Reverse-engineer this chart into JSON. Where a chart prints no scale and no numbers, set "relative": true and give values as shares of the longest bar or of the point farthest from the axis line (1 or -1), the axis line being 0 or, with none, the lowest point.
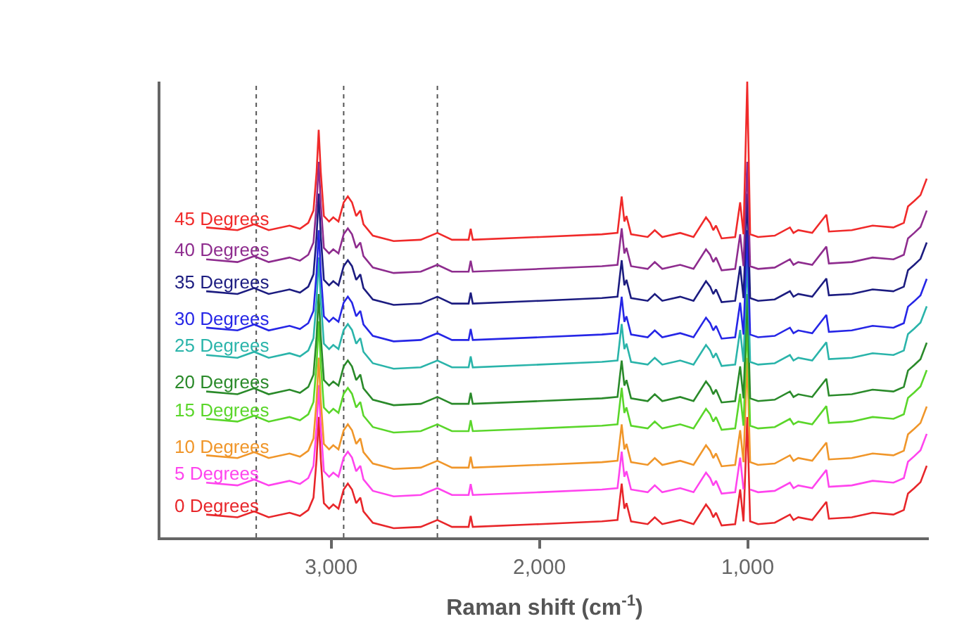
{
  "chart_data": {
    "type": "line",
    "relative": true,
    "xlabel": "Raman shift (cm$^{-1}$)",
    "x": [
      3600,
      3450,
      3370,
      3300,
      3200,
      3150,
      3110,
      3085,
      3070,
      3060,
      3050,
      3035,
      3010,
      2990,
      2965,
      2940,
      2920,
      2900,
      2880,
      2860,
      2845,
      2800,
      2700,
      2570,
      2490,
      2420,
      2340,
      2330,
      2320,
      2000,
      1700,
      1625,
      1605,
      1592,
      1582,
      1560,
      1480,
      1446,
      1410,
      1324,
      1260,
      1200,
      1180,
      1165,
      1152,
      1125,
      1060,
      1036,
      1020,
      1002,
      988,
      950,
      870,
      797,
      780,
      757,
      690,
      622,
      610,
      500,
      400,
      300,
      250,
      230,
      200,
      170,
      140
    ],
    "xlim": [
      3820,
      130
    ],
    "xticks": [
      {
        "value": 3000,
        "label": "3,000"
      },
      {
        "value": 2000,
        "label": "2,000"
      },
      {
        "value": 1000,
        "label": "1,000"
      }
    ],
    "grid": false,
    "legend": false,
    "ref_lines": [
      {
        "axis": "x",
        "value": 3360,
        "color": "#555555",
        "line_style": "dotted"
      },
      {
        "axis": "x",
        "value": 2940,
        "color": "#555555",
        "line_style": "dotted"
      },
      {
        "axis": "x",
        "value": 2490,
        "color": "#555555",
        "line_style": "dotted"
      }
    ],
    "series": [
      {
        "name": "0 Degrees",
        "color": "#e8262a",
        "values": [
          0.05,
          0.044,
          0.057,
          0.044,
          0.054,
          0.047,
          0.06,
          0.087,
          0.172,
          0.264,
          0.172,
          0.075,
          0.063,
          0.072,
          0.063,
          0.105,
          0.118,
          0.105,
          0.075,
          0.087,
          0.057,
          0.032,
          0.02,
          0.023,
          0.038,
          0.023,
          0.023,
          0.047,
          0.023,
          0.029,
          0.035,
          0.038,
          0.118,
          0.063,
          0.075,
          0.035,
          0.029,
          0.044,
          0.029,
          0.038,
          0.029,
          0.072,
          0.06,
          0.044,
          0.054,
          0.026,
          0.029,
          0.105,
          0.035,
          0.264,
          0.035,
          0.029,
          0.032,
          0.05,
          0.038,
          0.044,
          0.038,
          0.078,
          0.041,
          0.044,
          0.054,
          0.05,
          0.06,
          0.096,
          0.108,
          0.121,
          0.157
        ]
      },
      {
        "name": "5 Degrees",
        "color": "#ff44ee",
        "values": [
          0.12,
          0.114,
          0.127,
          0.114,
          0.124,
          0.117,
          0.13,
          0.157,
          0.242,
          0.334,
          0.242,
          0.145,
          0.133,
          0.142,
          0.133,
          0.175,
          0.188,
          0.175,
          0.145,
          0.157,
          0.127,
          0.102,
          0.09,
          0.093,
          0.108,
          0.093,
          0.093,
          0.117,
          0.093,
          0.099,
          0.105,
          0.108,
          0.188,
          0.133,
          0.145,
          0.105,
          0.099,
          0.114,
          0.099,
          0.108,
          0.099,
          0.142,
          0.13,
          0.114,
          0.124,
          0.096,
          0.099,
          0.175,
          0.105,
          null,
          0.105,
          0.099,
          0.102,
          0.12,
          0.108,
          0.114,
          0.108,
          0.148,
          0.111,
          0.114,
          0.124,
          0.12,
          0.13,
          0.166,
          0.178,
          0.191,
          0.227
        ]
      },
      {
        "name": "10 Degrees",
        "color": "#f0962a",
        "values": [
          0.18,
          0.174,
          0.187,
          0.174,
          0.184,
          0.177,
          0.19,
          0.217,
          0.302,
          0.394,
          0.302,
          0.205,
          0.193,
          0.202,
          0.193,
          0.235,
          0.248,
          0.235,
          0.205,
          0.217,
          0.187,
          0.162,
          0.15,
          0.153,
          0.168,
          0.153,
          0.153,
          0.177,
          0.153,
          0.159,
          0.165,
          0.168,
          0.248,
          0.193,
          0.205,
          0.165,
          0.159,
          0.174,
          0.159,
          0.168,
          0.159,
          0.202,
          0.19,
          0.174,
          0.184,
          0.156,
          0.159,
          0.235,
          0.165,
          0.394,
          0.165,
          0.159,
          0.162,
          0.18,
          0.168,
          0.174,
          0.168,
          0.208,
          0.171,
          0.174,
          0.184,
          0.18,
          0.19,
          0.226,
          0.238,
          0.251,
          0.287
        ]
      },
      {
        "name": "15 Degrees",
        "color": "#5ad62a",
        "values": [
          0.26,
          0.254,
          0.267,
          0.254,
          0.264,
          0.257,
          0.27,
          0.297,
          0.382,
          0.474,
          0.382,
          0.285,
          0.273,
          0.282,
          0.273,
          0.315,
          0.328,
          0.315,
          0.285,
          0.297,
          0.267,
          0.242,
          0.23,
          0.233,
          0.248,
          0.233,
          0.233,
          0.257,
          0.233,
          0.239,
          0.245,
          0.248,
          0.328,
          0.273,
          0.285,
          0.245,
          0.239,
          0.254,
          0.239,
          0.248,
          0.239,
          0.282,
          0.27,
          0.254,
          0.264,
          0.236,
          0.239,
          0.315,
          0.245,
          0.474,
          0.245,
          0.239,
          0.242,
          0.26,
          0.248,
          0.254,
          0.248,
          0.288,
          0.251,
          0.254,
          0.264,
          0.26,
          0.27,
          0.306,
          0.318,
          0.331,
          0.367
        ]
      },
      {
        "name": "20 Degrees",
        "color": "#2a8a2a",
        "values": [
          0.32,
          0.314,
          0.327,
          0.314,
          0.324,
          0.317,
          0.33,
          0.357,
          0.442,
          0.534,
          0.442,
          0.345,
          0.333,
          0.342,
          0.333,
          0.375,
          0.388,
          0.375,
          0.345,
          0.357,
          0.327,
          0.302,
          0.29,
          0.293,
          0.308,
          0.293,
          0.293,
          0.317,
          0.293,
          0.299,
          0.305,
          0.308,
          0.388,
          0.333,
          0.345,
          0.305,
          0.299,
          0.314,
          0.299,
          0.308,
          0.299,
          0.342,
          0.33,
          0.314,
          0.324,
          0.296,
          0.299,
          0.375,
          0.305,
          0.534,
          0.305,
          0.299,
          0.302,
          0.32,
          0.308,
          0.314,
          0.308,
          0.348,
          0.311,
          0.314,
          0.324,
          0.32,
          0.33,
          0.366,
          0.378,
          0.391,
          0.427
        ]
      },
      {
        "name": "25 Degrees",
        "color": "#2ab4aa",
        "values": [
          0.4,
          0.394,
          0.407,
          0.394,
          0.404,
          0.397,
          0.41,
          0.437,
          0.522,
          0.614,
          0.522,
          0.425,
          0.413,
          0.422,
          0.413,
          0.455,
          0.468,
          0.455,
          0.425,
          0.437,
          0.407,
          0.382,
          0.37,
          0.373,
          0.388,
          0.373,
          0.373,
          0.397,
          0.373,
          0.379,
          0.385,
          0.388,
          0.468,
          0.413,
          0.425,
          0.385,
          0.379,
          0.394,
          0.379,
          0.388,
          0.379,
          0.422,
          0.41,
          0.394,
          0.404,
          0.376,
          0.379,
          0.455,
          0.385,
          0.614,
          0.385,
          0.379,
          0.382,
          0.4,
          0.388,
          0.394,
          0.388,
          0.428,
          0.391,
          0.394,
          0.404,
          0.4,
          0.41,
          0.446,
          0.458,
          0.471,
          0.507
        ]
      },
      {
        "name": "30 Degrees",
        "color": "#2626e6",
        "values": [
          0.46,
          0.454,
          0.467,
          0.454,
          0.464,
          0.457,
          0.47,
          0.497,
          0.582,
          0.674,
          0.582,
          0.485,
          0.473,
          0.482,
          0.473,
          0.515,
          0.528,
          0.515,
          0.485,
          0.497,
          0.467,
          0.442,
          0.43,
          0.433,
          0.448,
          0.433,
          0.433,
          0.457,
          0.433,
          0.439,
          0.445,
          0.448,
          0.528,
          0.473,
          0.485,
          0.445,
          0.439,
          0.454,
          0.439,
          0.448,
          0.439,
          0.482,
          0.47,
          0.454,
          0.464,
          0.436,
          0.439,
          0.515,
          0.445,
          0.674,
          0.445,
          0.439,
          0.442,
          0.46,
          0.448,
          0.454,
          0.448,
          0.488,
          0.451,
          0.454,
          0.464,
          0.46,
          0.47,
          0.506,
          0.518,
          0.531,
          0.567
        ]
      },
      {
        "name": "35 Degrees",
        "color": "#1c1c80",
        "values": [
          0.54,
          0.534,
          0.547,
          0.534,
          0.544,
          0.537,
          0.55,
          0.577,
          0.662,
          0.754,
          0.662,
          0.565,
          0.553,
          0.562,
          0.553,
          0.595,
          0.608,
          0.595,
          0.565,
          0.577,
          0.547,
          0.522,
          0.51,
          0.513,
          0.528,
          0.513,
          0.513,
          0.537,
          0.513,
          0.519,
          0.525,
          0.528,
          0.608,
          0.553,
          0.565,
          0.525,
          0.519,
          0.534,
          0.519,
          0.528,
          0.519,
          0.562,
          0.55,
          0.534,
          0.544,
          0.516,
          0.519,
          0.595,
          0.525,
          0.754,
          0.525,
          0.519,
          0.522,
          0.54,
          0.528,
          0.534,
          0.528,
          0.568,
          0.531,
          0.534,
          0.544,
          0.54,
          0.55,
          0.586,
          0.598,
          0.611,
          0.647
        ]
      },
      {
        "name": "40 Degrees",
        "color": "#8e2c8e",
        "values": [
          0.61,
          0.604,
          0.617,
          0.604,
          0.614,
          0.607,
          0.62,
          0.647,
          0.732,
          0.824,
          0.732,
          0.635,
          0.623,
          0.632,
          0.623,
          0.665,
          0.678,
          0.665,
          0.635,
          0.647,
          0.617,
          0.592,
          0.58,
          0.583,
          0.598,
          0.583,
          0.583,
          0.607,
          0.583,
          0.589,
          0.595,
          0.598,
          0.678,
          0.623,
          0.635,
          0.595,
          0.589,
          0.604,
          0.589,
          0.598,
          0.589,
          0.632,
          0.62,
          0.604,
          0.614,
          0.586,
          0.589,
          0.665,
          0.595,
          0.824,
          0.595,
          0.589,
          0.592,
          0.61,
          0.598,
          0.604,
          0.598,
          0.638,
          0.601,
          0.604,
          0.614,
          0.61,
          0.62,
          0.656,
          0.668,
          0.681,
          0.717
        ]
      },
      {
        "name": "45 Degrees",
        "color": "#f02a2a",
        "values": [
          0.68,
          0.674,
          0.687,
          0.674,
          0.684,
          0.677,
          0.69,
          0.717,
          0.802,
          0.894,
          0.802,
          0.705,
          0.693,
          0.702,
          0.693,
          0.735,
          0.748,
          0.735,
          0.705,
          0.717,
          0.687,
          0.662,
          0.65,
          0.653,
          0.668,
          0.653,
          0.653,
          0.677,
          0.653,
          0.659,
          0.665,
          0.668,
          0.748,
          0.693,
          0.705,
          0.665,
          0.659,
          0.674,
          0.659,
          0.668,
          0.659,
          0.702,
          0.69,
          0.674,
          0.684,
          0.656,
          0.659,
          0.735,
          0.665,
          1.0,
          0.665,
          0.659,
          0.662,
          0.68,
          0.668,
          0.674,
          0.668,
          0.708,
          0.671,
          0.674,
          0.684,
          0.68,
          0.69,
          0.726,
          0.738,
          0.751,
          0.787
        ]
      }
    ]
  }
}
